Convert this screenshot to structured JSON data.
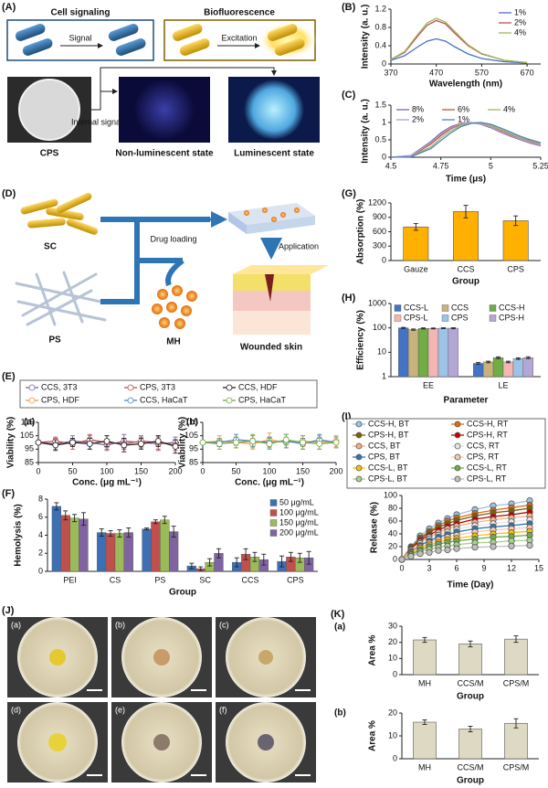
{
  "figure": {
    "panel_labels": [
      "(A)",
      "(B)",
      "(C)",
      "(D)",
      "(E)",
      "(F)",
      "(G)",
      "(H)",
      "(I)",
      "(J)",
      "(K)"
    ]
  },
  "panel_a": {
    "cell_signaling": "Cell signaling",
    "signal": "Signal",
    "biofluorescence": "Biofluorescence",
    "excitation": "Excitation",
    "internal_signal": "Internal signal",
    "cps": "CPS",
    "non_luminescent": "Non-luminescent state",
    "luminescent": "Luminescent state"
  },
  "panel_d": {
    "sc": "SC",
    "ps": "PS",
    "drug_loading": "Drug loading",
    "mh": "MH",
    "application": "Application",
    "wounded_skin": "Wounded skin"
  },
  "panel_j": {
    "labels": [
      "(a)",
      "(b)",
      "(c)",
      "(d)",
      "(e)",
      "(f)"
    ]
  },
  "chart_data": [
    {
      "type": "line",
      "xlabel": "Wavelength (nm)",
      "ylabel": "Intensity (a. u.)",
      "x": [
        370,
        400,
        430,
        450,
        470,
        490,
        510,
        540,
        570,
        620,
        670
      ],
      "xlim": [
        370,
        700
      ],
      "xticks": [
        370,
        470,
        570,
        670
      ],
      "ylim": [
        0,
        1.2
      ],
      "yticks": [
        0,
        0.4,
        0.8,
        1.2
      ],
      "legend": "top-right",
      "series": [
        {
          "name": "1%",
          "color": "#4472c4",
          "values": [
            0.08,
            0.18,
            0.38,
            0.5,
            0.55,
            0.5,
            0.38,
            0.22,
            0.12,
            0.05,
            0.02
          ]
        },
        {
          "name": "2%",
          "color": "#c0504d",
          "values": [
            0.1,
            0.25,
            0.62,
            0.85,
            0.95,
            0.88,
            0.68,
            0.4,
            0.22,
            0.08,
            0.03
          ]
        },
        {
          "name": "4%",
          "color": "#9bbb59",
          "values": [
            0.1,
            0.27,
            0.66,
            0.9,
            1.0,
            0.92,
            0.72,
            0.42,
            0.23,
            0.08,
            0.03
          ]
        }
      ]
    },
    {
      "type": "line",
      "xlabel": "Time (μs)",
      "ylabel": "Intensity (a. u.)",
      "x": [
        4.5,
        4.6,
        4.7,
        4.75,
        4.8,
        4.85,
        4.9,
        4.95,
        5,
        5.05,
        5.1,
        5.15,
        5.2,
        5.25
      ],
      "xlim": [
        4.5,
        5.25
      ],
      "xticks": [
        4.5,
        4.75,
        5,
        5.25
      ],
      "ylim": [
        0,
        1.5
      ],
      "yticks": [
        0,
        0.5,
        1,
        1.5
      ],
      "legend": "top",
      "series": [
        {
          "name": "8%",
          "color": "#8064a2",
          "values": [
            0,
            0.05,
            0.45,
            0.7,
            0.88,
            0.98,
            1.0,
            0.95,
            0.85,
            0.72,
            0.6,
            0.5,
            0.4,
            0.33
          ]
        },
        {
          "name": "6%",
          "color": "#c0504d",
          "values": [
            0,
            0.03,
            0.38,
            0.62,
            0.82,
            0.95,
            1.0,
            0.97,
            0.88,
            0.76,
            0.64,
            0.53,
            0.44,
            0.36
          ]
        },
        {
          "name": "4%",
          "color": "#9bbb59",
          "values": [
            0,
            0.02,
            0.3,
            0.55,
            0.76,
            0.92,
            0.99,
            1.0,
            0.92,
            0.8,
            0.68,
            0.57,
            0.47,
            0.39
          ]
        },
        {
          "name": "2%",
          "color": "#b3a2c7",
          "values": [
            0,
            0.04,
            0.42,
            0.66,
            0.85,
            0.97,
            1.0,
            0.96,
            0.87,
            0.74,
            0.62,
            0.52,
            0.42,
            0.35
          ]
        },
        {
          "name": "1%",
          "color": "#4f81bd",
          "values": [
            0,
            0.01,
            0.25,
            0.48,
            0.7,
            0.88,
            0.97,
            1.0,
            0.95,
            0.84,
            0.72,
            0.6,
            0.5,
            0.42
          ]
        }
      ]
    },
    {
      "type": "bar",
      "xlabel": "Group",
      "ylabel": "Absorption (%)",
      "categories": [
        "Gauze",
        "CCS",
        "CPS"
      ],
      "values": [
        700,
        1020,
        830
      ],
      "errors": [
        70,
        130,
        100
      ],
      "color": "#ffb000",
      "ylim": [
        0,
        1200
      ],
      "yticks": [
        0,
        300,
        600,
        900,
        1200
      ]
    },
    {
      "type": "bar",
      "xlabel": "Parameter",
      "ylabel": "Efficiency (%)",
      "categories": [
        "EE",
        "LE"
      ],
      "log_y": true,
      "ylim": [
        1,
        1000
      ],
      "yticks": [
        1,
        10,
        100,
        1000
      ],
      "legend": "top",
      "series": [
        {
          "name": "CCS-L",
          "color": "#4472c4",
          "values": [
            100,
            3.5
          ],
          "errors": [
            5,
            0.3
          ]
        },
        {
          "name": "CCS",
          "color": "#c9b27c",
          "values": [
            85,
            4
          ],
          "errors": [
            5,
            0.3
          ]
        },
        {
          "name": "CCS-H",
          "color": "#70ad47",
          "values": [
            95,
            6
          ],
          "errors": [
            5,
            0.5
          ]
        },
        {
          "name": "CPS-L",
          "color": "#f4b6b4",
          "values": [
            95,
            4
          ],
          "errors": [
            4,
            0.3
          ]
        },
        {
          "name": "CPS",
          "color": "#9dc3e6",
          "values": [
            97,
            5.5
          ],
          "errors": [
            4,
            0.4
          ]
        },
        {
          "name": "CPS-H",
          "color": "#b4a7d6",
          "values": [
            97,
            6
          ],
          "errors": [
            5,
            0.5
          ]
        }
      ]
    },
    {
      "type": "line",
      "label": "(a)",
      "markers": true,
      "xlabel": "Conc. (μg mL⁻¹)",
      "ylabel": "Viability (%)",
      "x": [
        0,
        25,
        50,
        75,
        100,
        125,
        150,
        175,
        200
      ],
      "xlim": [
        0,
        200
      ],
      "xticks": [
        0,
        50,
        100,
        150,
        200
      ],
      "ylim": [
        85,
        115
      ],
      "yticks": [
        85,
        95,
        105,
        115
      ],
      "series": [
        {
          "name": "CCS, 3T3",
          "color": "#8064a2",
          "values": [
            100,
            99,
            101,
            100,
            98,
            101,
            100,
            99,
            100
          ],
          "errors": [
            0,
            4,
            4,
            5,
            4,
            5,
            4,
            5,
            4
          ]
        },
        {
          "name": "CPS, 3T3",
          "color": "#c0504d",
          "values": [
            100,
            101,
            99,
            102,
            100,
            99,
            101,
            100,
            98
          ],
          "errors": [
            0,
            3,
            4,
            4,
            5,
            4,
            4,
            5,
            4
          ]
        },
        {
          "name": "CCS, HDF",
          "color": "#222222",
          "values": [
            100,
            98,
            100,
            99,
            101,
            98,
            99,
            101,
            97
          ],
          "errors": [
            0,
            4,
            3,
            4,
            4,
            5,
            4,
            4,
            5
          ]
        }
      ]
    },
    {
      "type": "line",
      "label": "(b)",
      "markers": true,
      "xlabel": "Conc. (μg mL⁻¹)",
      "ylabel": "Viability (%)",
      "x": [
        0,
        25,
        50,
        75,
        100,
        125,
        150,
        175,
        200
      ],
      "xlim": [
        0,
        200
      ],
      "xticks": [
        0,
        50,
        100,
        150,
        200
      ],
      "ylim": [
        85,
        115
      ],
      "yticks": [
        85,
        95,
        105,
        115
      ],
      "series": [
        {
          "name": "CPS, HDF",
          "color": "#f79646",
          "values": [
            100,
            101,
            100,
            99,
            102,
            100,
            101,
            100,
            101
          ],
          "errors": [
            0,
            4,
            4,
            4,
            5,
            4,
            4,
            5,
            4
          ]
        },
        {
          "name": "CCS, HaCaT",
          "color": "#4f81bd",
          "values": [
            100,
            100,
            102,
            101,
            100,
            101,
            99,
            102,
            100
          ],
          "errors": [
            0,
            3,
            4,
            4,
            4,
            5,
            4,
            4,
            4
          ]
        },
        {
          "name": "CPS, HaCaT",
          "color": "#70ad47",
          "values": [
            100,
            99,
            100,
            101,
            99,
            102,
            100,
            99,
            100
          ],
          "errors": [
            0,
            4,
            4,
            5,
            4,
            4,
            5,
            4,
            4
          ]
        }
      ]
    },
    {
      "type": "bar",
      "xlabel": "Group",
      "ylabel": "Hemolysis (%)",
      "categories": [
        "PEI",
        "CS",
        "PS",
        "SC",
        "CCS",
        "CPS"
      ],
      "ylim": [
        0,
        8
      ],
      "yticks": [
        0,
        2,
        4,
        6,
        8
      ],
      "legend": "top-right",
      "series": [
        {
          "name": "50 μg/mL",
          "color": "#3c6fb4",
          "values": [
            7.2,
            4.3,
            4.7,
            0.6,
            1.0,
            1.1
          ],
          "errors": [
            0.4,
            0.4,
            0.1,
            0.3,
            0.5,
            0.6
          ]
        },
        {
          "name": "100 μg/mL",
          "color": "#c0504d",
          "values": [
            6.2,
            4.2,
            5.5,
            0.3,
            1.9,
            1.6
          ],
          "errors": [
            0.5,
            0.3,
            0.2,
            0.2,
            0.6,
            0.5
          ]
        },
        {
          "name": "150 μg/mL",
          "color": "#9bbb59",
          "values": [
            5.9,
            4.2,
            5.7,
            1.0,
            1.6,
            1.5
          ],
          "errors": [
            0.4,
            0.4,
            0.4,
            0.4,
            0.5,
            0.5
          ]
        },
        {
          "name": "200 μg/mL",
          "color": "#8064a2",
          "values": [
            5.8,
            4.3,
            4.4,
            2.0,
            1.3,
            1.5
          ],
          "errors": [
            0.7,
            0.5,
            0.6,
            0.5,
            0.6,
            0.7
          ]
        }
      ]
    },
    {
      "type": "line",
      "markers": true,
      "xlabel": "Time (Day)",
      "ylabel": "Release (%)",
      "x": [
        0,
        1,
        2,
        3,
        4,
        5,
        6,
        8,
        10,
        12,
        14
      ],
      "xlim": [
        0,
        15
      ],
      "xticks": [
        0,
        3,
        6,
        9,
        12,
        15
      ],
      "ylim": [
        0,
        100
      ],
      "yticks": [
        0,
        20,
        40,
        60,
        80,
        100
      ],
      "legend": "top",
      "series": [
        {
          "name": "CCS-H, BT",
          "color": "#9dc3e6",
          "values": [
            0,
            20,
            37,
            48,
            57,
            64,
            70,
            78,
            84,
            87,
            92
          ]
        },
        {
          "name": "CCS-H, RT",
          "color": "#e46c0a",
          "values": [
            0,
            19,
            34,
            44,
            53,
            60,
            65,
            72,
            77,
            81,
            85
          ]
        },
        {
          "name": "CPS-H, BT",
          "color": "#7f6000",
          "values": [
            0,
            18,
            32,
            42,
            50,
            56,
            61,
            68,
            73,
            76,
            80
          ]
        },
        {
          "name": "CPS-H, RT",
          "color": "#c00000",
          "values": [
            0,
            16,
            30,
            38,
            46,
            52,
            56,
            63,
            67,
            70,
            74
          ]
        },
        {
          "name": "CCS, BT",
          "color": "#f4b183",
          "values": [
            0,
            15,
            27,
            35,
            42,
            48,
            52,
            58,
            62,
            65,
            68
          ]
        },
        {
          "name": "CCS, RT",
          "color": "#e7e6e6",
          "values": [
            0,
            14,
            25,
            32,
            38,
            43,
            47,
            53,
            56,
            59,
            62
          ]
        },
        {
          "name": "CPS, BT",
          "color": "#2e75b6",
          "values": [
            0,
            12,
            22,
            29,
            35,
            39,
            43,
            48,
            51,
            53,
            56
          ]
        },
        {
          "name": "CPS, RT",
          "color": "#f8cbad",
          "values": [
            0,
            11,
            20,
            26,
            31,
            35,
            38,
            43,
            46,
            48,
            50
          ]
        },
        {
          "name": "CCS-L, BT",
          "color": "#ffc000",
          "values": [
            0,
            10,
            18,
            23,
            27,
            31,
            33,
            37,
            40,
            42,
            44
          ]
        },
        {
          "name": "CCS-L, RT",
          "color": "#70ad47",
          "values": [
            0,
            8,
            15,
            20,
            24,
            27,
            29,
            32,
            35,
            36,
            38
          ]
        },
        {
          "name": "CPS-L, BT",
          "color": "#a9d18e",
          "values": [
            0,
            7,
            12,
            16,
            19,
            21,
            23,
            26,
            27,
            29,
            30
          ]
        },
        {
          "name": "CPS-L, RT",
          "color": "#bfbfbf",
          "values": [
            0,
            5,
            9,
            11,
            14,
            15,
            17,
            19,
            20,
            21,
            22
          ]
        }
      ]
    },
    {
      "type": "bar",
      "label": "(a)",
      "xlabel": "Group",
      "ylabel": "Area %",
      "categories": [
        "MH",
        "CCS/M",
        "CPS/M"
      ],
      "values": [
        21.5,
        19,
        22
      ],
      "errors": [
        1.5,
        1.8,
        2
      ],
      "color": "#ddd9c3",
      "ylim": [
        0,
        30
      ],
      "yticks": [
        0,
        10,
        20,
        30
      ]
    },
    {
      "type": "bar",
      "label": "(b)",
      "xlabel": "Group",
      "ylabel": "Area %",
      "categories": [
        "MH",
        "CCS/M",
        "CPS/M"
      ],
      "values": [
        16,
        13,
        15.5
      ],
      "errors": [
        1,
        1.2,
        2
      ],
      "color": "#ddd9c3",
      "ylim": [
        0,
        20
      ],
      "yticks": [
        0,
        10,
        20
      ]
    }
  ]
}
